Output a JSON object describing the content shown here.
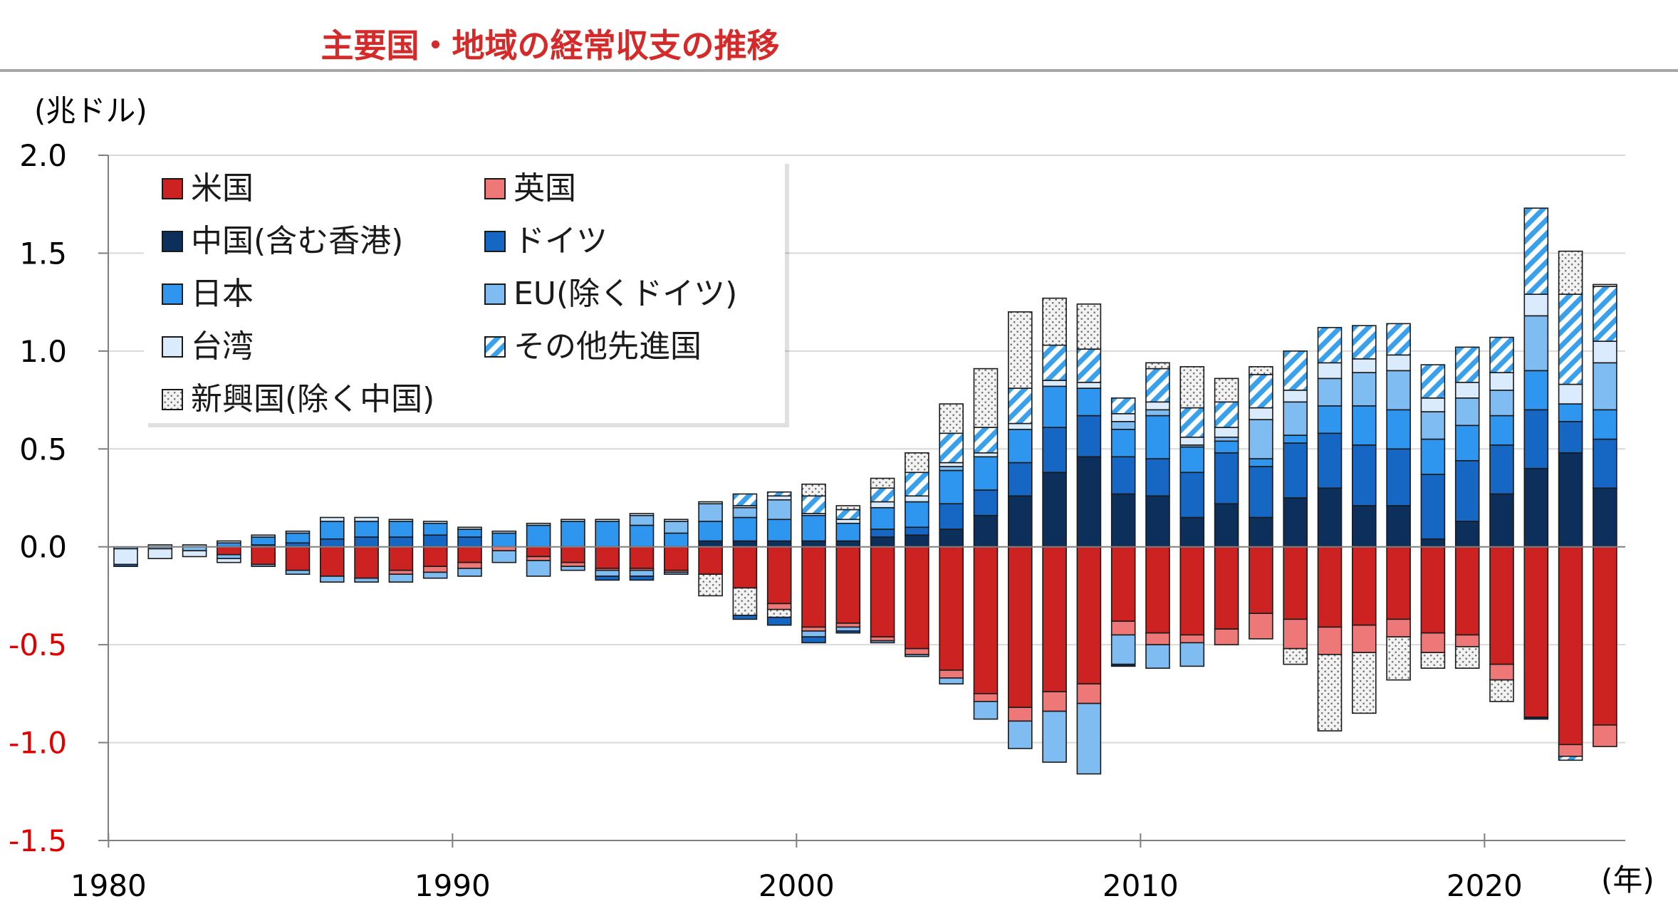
{
  "title": "主要国・地域の経常収支の推移",
  "colors": {
    "米国": "#cc2222",
    "英国": "#ee7777",
    "中国(含む香港)": "#0d2f5c",
    "ドイツ": "#1666c3",
    "日本": "#2e96ee",
    "EU(除くドイツ)": "#7fbcf2",
    "台湾": "#d9ebfc",
    "その他先進国": "#39a0ec",
    "新興国(除く中国)": "#e9e9e9"
  },
  "chart_data": {
    "type": "bar",
    "stacked": true,
    "y_unit_label": "(兆ドル)",
    "x_unit_label": "(年)",
    "ylim": [
      -1.5,
      2.0
    ],
    "y_ticks": [
      "2.0",
      "1.5",
      "1.0",
      "0.5",
      "0.0",
      "-0.5",
      "-1.0",
      "-1.5"
    ],
    "x_ticks": [
      "1980",
      "1990",
      "2000",
      "2010",
      "2020"
    ],
    "legend_position": "top-left inside",
    "years": [
      1980,
      1981,
      1982,
      1983,
      1984,
      1985,
      1986,
      1987,
      1988,
      1989,
      1990,
      1991,
      1992,
      1993,
      1994,
      1995,
      1996,
      1997,
      1998,
      1999,
      2000,
      2001,
      2002,
      2003,
      2004,
      2005,
      2006,
      2007,
      2008,
      2009,
      2010,
      2011,
      2012,
      2013,
      2014,
      2015,
      2016,
      2017,
      2018,
      2019,
      2020,
      2021,
      2022,
      2023
    ],
    "series": [
      {
        "name": "中国(含む香港)",
        "sign": "positive",
        "pattern": "solid",
        "values": [
          0.0,
          0.0,
          0.0,
          0.0,
          0.0,
          0.0,
          0.0,
          0.0,
          0.0,
          0.0,
          0.0,
          0.0,
          0.0,
          0.0,
          0.0,
          0.0,
          0.0,
          0.03,
          0.03,
          0.03,
          0.03,
          0.03,
          0.05,
          0.06,
          0.09,
          0.16,
          0.26,
          0.38,
          0.46,
          0.27,
          0.26,
          0.15,
          0.22,
          0.15,
          0.25,
          0.3,
          0.21,
          0.21,
          0.04,
          0.13,
          0.27,
          0.4,
          0.48,
          0.3
        ]
      },
      {
        "name": "ドイツ",
        "sign": "positive",
        "pattern": "solid",
        "values": [
          0.0,
          0.0,
          0.0,
          0.0,
          0.01,
          0.02,
          0.04,
          0.05,
          0.05,
          0.06,
          0.05,
          0.0,
          0.0,
          0.0,
          0.0,
          0.0,
          0.0,
          0.0,
          0.0,
          0.0,
          0.0,
          0.0,
          0.04,
          0.04,
          0.13,
          0.13,
          0.17,
          0.23,
          0.21,
          0.19,
          0.19,
          0.23,
          0.26,
          0.26,
          0.28,
          0.28,
          0.31,
          0.29,
          0.33,
          0.31,
          0.25,
          0.3,
          0.16,
          0.25
        ]
      },
      {
        "name": "日本",
        "sign": "positive",
        "pattern": "solid",
        "values": [
          0.0,
          0.0,
          0.0,
          0.02,
          0.04,
          0.05,
          0.09,
          0.08,
          0.08,
          0.06,
          0.04,
          0.07,
          0.11,
          0.13,
          0.13,
          0.11,
          0.07,
          0.1,
          0.12,
          0.11,
          0.13,
          0.09,
          0.11,
          0.13,
          0.17,
          0.17,
          0.17,
          0.21,
          0.14,
          0.14,
          0.22,
          0.13,
          0.06,
          0.04,
          0.04,
          0.14,
          0.2,
          0.2,
          0.18,
          0.18,
          0.15,
          0.2,
          0.09,
          0.15
        ]
      },
      {
        "name": "EU(除くドイツ)",
        "sign": "positive",
        "pattern": "solid",
        "values": [
          0.0,
          0.0,
          0.0,
          0.0,
          0.0,
          0.0,
          0.0,
          0.0,
          0.0,
          0.0,
          0.0,
          0.0,
          0.0,
          0.0,
          0.0,
          0.05,
          0.06,
          0.09,
          0.05,
          0.1,
          0.0,
          0.0,
          0.0,
          0.0,
          0.02,
          0.0,
          0.0,
          0.0,
          0.0,
          0.04,
          0.03,
          0.01,
          0.02,
          0.2,
          0.17,
          0.14,
          0.17,
          0.2,
          0.14,
          0.14,
          0.13,
          0.28,
          0.0,
          0.24
        ]
      },
      {
        "name": "台湾",
        "sign": "positive",
        "pattern": "solid",
        "values": [
          0.0,
          0.01,
          0.01,
          0.01,
          0.01,
          0.01,
          0.02,
          0.02,
          0.01,
          0.01,
          0.01,
          0.01,
          0.01,
          0.01,
          0.01,
          0.01,
          0.01,
          0.01,
          0.01,
          0.02,
          0.01,
          0.02,
          0.03,
          0.03,
          0.02,
          0.02,
          0.03,
          0.03,
          0.03,
          0.04,
          0.04,
          0.04,
          0.05,
          0.06,
          0.06,
          0.08,
          0.07,
          0.08,
          0.07,
          0.08,
          0.09,
          0.11,
          0.1,
          0.11
        ]
      },
      {
        "name": "その他先進国",
        "sign": "positive",
        "pattern": "diagonal",
        "values": [
          0.0,
          0.0,
          0.0,
          0.0,
          0.0,
          0.0,
          0.0,
          0.0,
          0.0,
          0.0,
          0.0,
          0.0,
          0.0,
          0.0,
          0.0,
          0.0,
          0.0,
          0.0,
          0.06,
          0.02,
          0.09,
          0.05,
          0.07,
          0.12,
          0.15,
          0.13,
          0.18,
          0.18,
          0.17,
          0.08,
          0.17,
          0.15,
          0.13,
          0.17,
          0.2,
          0.18,
          0.17,
          0.16,
          0.17,
          0.18,
          0.18,
          0.44,
          0.46,
          0.28
        ]
      },
      {
        "name": "新興国(除く中国)",
        "sign": "positive",
        "pattern": "dotted",
        "values": [
          0.0,
          0.0,
          0.0,
          0.0,
          0.0,
          0.0,
          0.0,
          0.0,
          0.0,
          0.0,
          0.0,
          0.0,
          0.0,
          0.0,
          0.0,
          0.0,
          0.0,
          0.0,
          0.0,
          0.0,
          0.06,
          0.02,
          0.05,
          0.1,
          0.15,
          0.3,
          0.39,
          0.24,
          0.23,
          0.0,
          0.03,
          0.21,
          0.12,
          0.04,
          0.0,
          0.0,
          0.0,
          0.0,
          0.0,
          0.0,
          0.0,
          0.0,
          0.22,
          0.01
        ]
      },
      {
        "name": "米国",
        "sign": "negative",
        "pattern": "solid",
        "values": [
          0.0,
          0.0,
          0.0,
          -0.04,
          -0.09,
          -0.12,
          -0.15,
          -0.16,
          -0.12,
          -0.1,
          -0.08,
          0.0,
          -0.05,
          -0.08,
          -0.11,
          -0.11,
          -0.12,
          -0.14,
          -0.21,
          -0.29,
          -0.41,
          -0.39,
          -0.46,
          -0.52,
          -0.63,
          -0.75,
          -0.82,
          -0.74,
          -0.7,
          -0.38,
          -0.44,
          -0.45,
          -0.42,
          -0.34,
          -0.37,
          -0.41,
          -0.4,
          -0.37,
          -0.44,
          -0.45,
          -0.6,
          -0.87,
          -1.01,
          -0.91
        ]
      },
      {
        "name": "英国",
        "sign": "negative",
        "pattern": "solid",
        "values": [
          0.0,
          0.0,
          0.0,
          0.0,
          0.0,
          0.0,
          0.0,
          0.0,
          -0.02,
          -0.03,
          -0.03,
          -0.02,
          -0.02,
          -0.02,
          -0.01,
          -0.01,
          -0.01,
          0.0,
          0.0,
          -0.03,
          -0.02,
          -0.02,
          -0.02,
          -0.03,
          -0.04,
          -0.04,
          -0.07,
          -0.1,
          -0.1,
          -0.07,
          -0.06,
          -0.04,
          -0.08,
          -0.13,
          -0.15,
          -0.14,
          -0.14,
          -0.09,
          -0.1,
          -0.06,
          -0.08,
          0.0,
          -0.06,
          -0.11
        ]
      },
      {
        "name": "新興国(除く中国)",
        "sign": "negative",
        "pattern": "dotted",
        "values": [
          0.0,
          0.0,
          0.0,
          0.0,
          0.0,
          0.0,
          0.0,
          0.0,
          0.0,
          0.0,
          0.0,
          0.0,
          0.0,
          0.0,
          0.0,
          0.0,
          0.0,
          -0.11,
          -0.14,
          -0.04,
          0.0,
          0.0,
          0.0,
          0.0,
          0.0,
          0.0,
          0.0,
          0.0,
          0.0,
          0.0,
          0.0,
          0.0,
          0.0,
          0.0,
          -0.08,
          -0.39,
          -0.31,
          -0.22,
          -0.08,
          -0.11,
          -0.11,
          0.0,
          0.0,
          0.0
        ]
      },
      {
        "name": "EU(除くドイツ)",
        "sign": "negative",
        "pattern": "solid",
        "values": [
          -0.01,
          -0.01,
          -0.02,
          -0.02,
          -0.01,
          -0.02,
          -0.03,
          -0.02,
          -0.04,
          -0.03,
          -0.04,
          -0.06,
          -0.08,
          -0.02,
          -0.03,
          -0.03,
          -0.01,
          0.0,
          0.0,
          0.0,
          -0.03,
          -0.02,
          -0.01,
          -0.01,
          -0.03,
          -0.09,
          -0.14,
          -0.26,
          -0.36,
          -0.15,
          -0.12,
          -0.12,
          0.0,
          0.0,
          0.0,
          0.0,
          0.0,
          0.0,
          0.0,
          0.0,
          0.0,
          0.0,
          0.0,
          0.0
        ]
      },
      {
        "name": "台湾",
        "sign": "negative",
        "pattern": "solid",
        "values": [
          -0.08,
          -0.05,
          -0.03,
          -0.02,
          0.0,
          0.0,
          0.0,
          0.0,
          0.0,
          0.0,
          0.0,
          0.0,
          0.0,
          0.0,
          0.0,
          0.0,
          0.0,
          0.0,
          0.0,
          0.0,
          0.0,
          0.0,
          0.0,
          0.0,
          0.0,
          0.0,
          0.0,
          0.0,
          0.0,
          0.0,
          0.0,
          0.0,
          0.0,
          0.0,
          0.0,
          0.0,
          0.0,
          0.0,
          0.0,
          0.0,
          0.0,
          0.0,
          0.0,
          0.0
        ]
      },
      {
        "name": "ドイツ",
        "sign": "negative",
        "pattern": "solid",
        "values": [
          -0.01,
          0.0,
          0.0,
          0.0,
          0.0,
          0.0,
          0.0,
          0.0,
          0.0,
          0.0,
          0.0,
          0.0,
          0.0,
          0.0,
          -0.02,
          -0.02,
          0.0,
          0.0,
          -0.02,
          -0.04,
          -0.03,
          -0.01,
          0.0,
          0.0,
          0.0,
          0.0,
          0.0,
          0.0,
          0.0,
          0.0,
          0.0,
          0.0,
          0.0,
          0.0,
          0.0,
          0.0,
          0.0,
          0.0,
          0.0,
          0.0,
          0.0,
          0.0,
          0.0,
          0.0
        ]
      },
      {
        "name": "中国(含む香港)",
        "sign": "negative",
        "pattern": "solid",
        "values": [
          0.0,
          0.0,
          0.0,
          0.0,
          0.0,
          0.0,
          0.0,
          0.0,
          0.0,
          0.0,
          0.0,
          0.0,
          0.0,
          0.0,
          0.0,
          0.0,
          0.0,
          0.0,
          0.0,
          0.0,
          0.0,
          0.0,
          0.0,
          0.0,
          0.0,
          0.0,
          0.0,
          0.0,
          0.0,
          -0.01,
          0.0,
          0.0,
          0.0,
          0.0,
          0.0,
          0.0,
          0.0,
          0.0,
          0.0,
          0.0,
          0.0,
          -0.01,
          0.0,
          0.0
        ]
      },
      {
        "name": "その他先進国",
        "sign": "negative",
        "pattern": "diagonal",
        "values": [
          0.0,
          0.0,
          0.0,
          0.0,
          0.0,
          0.0,
          0.0,
          0.0,
          0.0,
          0.0,
          0.0,
          0.0,
          0.0,
          0.0,
          0.0,
          0.0,
          0.0,
          0.0,
          0.0,
          0.0,
          0.0,
          0.0,
          0.0,
          0.0,
          0.0,
          0.0,
          0.0,
          0.0,
          0.0,
          0.0,
          0.0,
          0.0,
          0.0,
          0.0,
          0.0,
          0.0,
          0.0,
          0.0,
          0.0,
          0.0,
          0.0,
          0.0,
          -0.02,
          0.0
        ]
      }
    ],
    "legend": [
      {
        "label": "米国",
        "series": "米国",
        "pattern": "solid"
      },
      {
        "label": "英国",
        "series": "英国",
        "pattern": "solid"
      },
      {
        "label": "中国(含む香港)",
        "series": "中国(含む香港)",
        "pattern": "solid"
      },
      {
        "label": "ドイツ",
        "series": "ドイツ",
        "pattern": "solid"
      },
      {
        "label": "日本",
        "series": "日本",
        "pattern": "solid"
      },
      {
        "label": "EU(除くドイツ)",
        "series": "EU(除くドイツ)",
        "pattern": "solid"
      },
      {
        "label": "台湾",
        "series": "台湾",
        "pattern": "solid"
      },
      {
        "label": "その他先進国",
        "series": "その他先進国",
        "pattern": "diagonal"
      },
      {
        "label": "新興国(除く中国)",
        "series": "新興国(除く中国)",
        "pattern": "dotted"
      }
    ]
  }
}
